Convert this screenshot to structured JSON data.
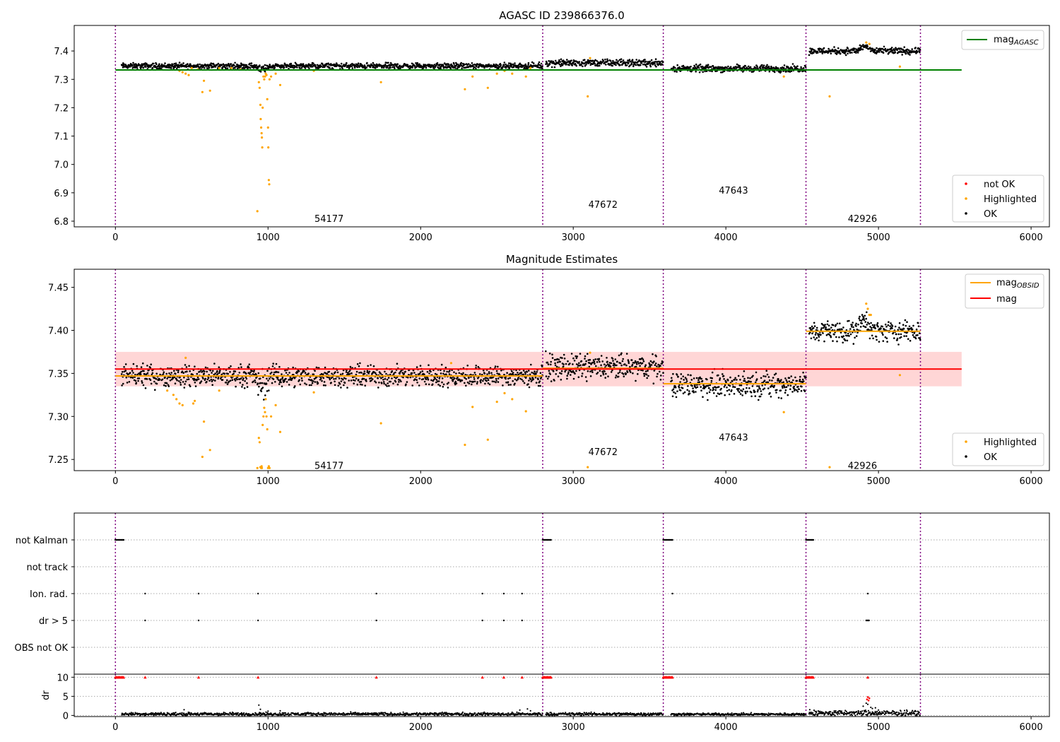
{
  "chart_data": [
    {
      "id": "agasc",
      "type": "scatter",
      "title": "AGASC ID 239866376.0",
      "xlim": [
        -270,
        6120
      ],
      "ylim": [
        6.78,
        7.49
      ],
      "xticks": [
        0,
        1000,
        2000,
        3000,
        4000,
        5000,
        6000
      ],
      "yticks": [
        6.8,
        6.9,
        7.0,
        7.1,
        7.2,
        7.3,
        7.4
      ],
      "ytick_labels": [
        "6.8",
        "6.9",
        "7.0",
        "7.1",
        "7.2",
        "7.3",
        "7.4"
      ],
      "obs_boundaries": [
        0,
        2800,
        3590,
        4525,
        5275
      ],
      "obs_labels": [
        {
          "text": "54177",
          "x": 1400,
          "y": 6.81
        },
        {
          "text": "47672",
          "x": 3195,
          "y": 6.86
        },
        {
          "text": "47643",
          "x": 4050,
          "y": 6.91
        },
        {
          "text": "42926",
          "x": 4895,
          "y": 6.81
        }
      ],
      "hlines": [
        {
          "name": "mag_AGASC",
          "y": 7.333,
          "x0": 0,
          "x1": 5545,
          "color": "#008000"
        }
      ],
      "segments": [
        {
          "x0": 40,
          "x1": 2800,
          "level": 7.347,
          "spread": 0.005
        },
        {
          "x0": 2820,
          "x1": 3590,
          "level": 7.358,
          "spread": 0.006
        },
        {
          "x0": 3640,
          "x1": 4525,
          "level": 7.338,
          "spread": 0.006
        },
        {
          "x0": 4545,
          "x1": 5275,
          "level": 7.4,
          "spread": 0.006
        }
      ],
      "bump": {
        "x0": 4860,
        "x1": 4960,
        "amp": 0.015
      },
      "dip": {
        "x0": 920,
        "x1": 1010,
        "depth": 0.02
      },
      "highlighted": [
        [
          420,
          7.33
        ],
        [
          440,
          7.325
        ],
        [
          460,
          7.32
        ],
        [
          480,
          7.315
        ],
        [
          500,
          7.34
        ],
        [
          540,
          7.335
        ],
        [
          570,
          7.255
        ],
        [
          580,
          7.295
        ],
        [
          620,
          7.26
        ],
        [
          680,
          7.34
        ],
        [
          760,
          7.34
        ],
        [
          820,
          7.335
        ],
        [
          930,
          6.835
        ],
        [
          940,
          7.29
        ],
        [
          945,
          7.27
        ],
        [
          950,
          7.21
        ],
        [
          952,
          7.16
        ],
        [
          955,
          7.13
        ],
        [
          958,
          7.11
        ],
        [
          960,
          7.095
        ],
        [
          962,
          7.06
        ],
        [
          965,
          7.2
        ],
        [
          970,
          7.31
        ],
        [
          975,
          7.3
        ],
        [
          980,
          7.31
        ],
        [
          985,
          7.32
        ],
        [
          990,
          7.315
        ],
        [
          995,
          7.23
        ],
        [
          1000,
          7.13
        ],
        [
          1002,
          7.06
        ],
        [
          1005,
          6.945
        ],
        [
          1008,
          6.93
        ],
        [
          1010,
          7.3
        ],
        [
          1020,
          7.31
        ],
        [
          1050,
          7.32
        ],
        [
          1080,
          7.28
        ],
        [
          1300,
          7.33
        ],
        [
          1740,
          7.29
        ],
        [
          2290,
          7.265
        ],
        [
          2340,
          7.31
        ],
        [
          2440,
          7.27
        ],
        [
          2500,
          7.32
        ],
        [
          2550,
          7.33
        ],
        [
          2600,
          7.32
        ],
        [
          2690,
          7.31
        ],
        [
          2720,
          7.34
        ],
        [
          3095,
          7.24
        ],
        [
          3110,
          7.375
        ],
        [
          4380,
          7.31
        ],
        [
          4680,
          7.24
        ],
        [
          4920,
          7.43
        ],
        [
          4940,
          7.425
        ],
        [
          5140,
          7.345
        ]
      ],
      "legend": [
        {
          "label": "not OK",
          "color": "#ff0000"
        },
        {
          "label": "Highlighted",
          "color": "#ffa500"
        },
        {
          "label": "OK",
          "color": "#000000"
        }
      ]
    },
    {
      "id": "estimates",
      "type": "scatter",
      "title": "Magnitude Estimates",
      "xlim": [
        -270,
        6120
      ],
      "ylim": [
        7.237,
        7.471
      ],
      "xticks": [
        0,
        1000,
        2000,
        3000,
        4000,
        5000,
        6000
      ],
      "yticks": [
        7.25,
        7.3,
        7.35,
        7.4,
        7.45
      ],
      "ytick_labels": [
        "7.25",
        "7.30",
        "7.35",
        "7.40",
        "7.45"
      ],
      "obs_boundaries": [
        0,
        2800,
        3590,
        4525,
        5275
      ],
      "obs_labels": [
        {
          "text": "54177",
          "x": 1400,
          "y": 7.243
        },
        {
          "text": "47672",
          "x": 3195,
          "y": 7.259
        },
        {
          "text": "47643",
          "x": 4050,
          "y": 7.276
        },
        {
          "text": "42926",
          "x": 4895,
          "y": 7.243
        }
      ],
      "band": {
        "y0": 7.335,
        "y1": 7.375,
        "x0": 0,
        "x1": 5545,
        "color": "#ffd6d6"
      },
      "mag_line": {
        "name": "mag",
        "y": 7.355,
        "x0": 0,
        "x1": 5545,
        "color": "#ff0000"
      },
      "obs_mags": [
        {
          "x0": 0,
          "x1": 2800,
          "y": 7.347
        },
        {
          "x0": 2800,
          "x1": 3590,
          "y": 7.356
        },
        {
          "x0": 3590,
          "x1": 4525,
          "y": 7.338
        },
        {
          "x0": 4525,
          "x1": 5275,
          "y": 7.399
        }
      ],
      "segments": [
        {
          "x0": 40,
          "x1": 2800,
          "level": 7.347,
          "spread": 0.006
        },
        {
          "x0": 2820,
          "x1": 3590,
          "level": 7.357,
          "spread": 0.007
        },
        {
          "x0": 3640,
          "x1": 4525,
          "level": 7.337,
          "spread": 0.007
        },
        {
          "x0": 4545,
          "x1": 5275,
          "level": 7.399,
          "spread": 0.006
        }
      ],
      "bump": {
        "x0": 4860,
        "x1": 4960,
        "amp": 0.012
      },
      "dip": {
        "x0": 920,
        "x1": 1010,
        "depth": 0.025
      },
      "highlighted": [
        [
          340,
          7.33
        ],
        [
          380,
          7.325
        ],
        [
          400,
          7.32
        ],
        [
          420,
          7.315
        ],
        [
          440,
          7.313
        ],
        [
          460,
          7.368
        ],
        [
          510,
          7.315
        ],
        [
          520,
          7.318
        ],
        [
          570,
          7.253
        ],
        [
          580,
          7.294
        ],
        [
          620,
          7.261
        ],
        [
          680,
          7.33
        ],
        [
          930,
          7.24
        ],
        [
          940,
          7.275
        ],
        [
          945,
          7.27
        ],
        [
          950,
          7.241
        ],
        [
          955,
          7.24
        ],
        [
          958,
          7.242
        ],
        [
          960,
          7.24
        ],
        [
          965,
          7.29
        ],
        [
          970,
          7.3
        ],
        [
          975,
          7.31
        ],
        [
          980,
          7.305
        ],
        [
          985,
          7.32
        ],
        [
          990,
          7.3
        ],
        [
          995,
          7.285
        ],
        [
          1000,
          7.24
        ],
        [
          1005,
          7.242
        ],
        [
          1010,
          7.24
        ],
        [
          1020,
          7.3
        ],
        [
          1050,
          7.313
        ],
        [
          1080,
          7.282
        ],
        [
          1300,
          7.328
        ],
        [
          1740,
          7.292
        ],
        [
          2200,
          7.362
        ],
        [
          2290,
          7.267
        ],
        [
          2340,
          7.311
        ],
        [
          2440,
          7.273
        ],
        [
          2500,
          7.317
        ],
        [
          2550,
          7.327
        ],
        [
          2600,
          7.32
        ],
        [
          2690,
          7.306
        ],
        [
          3095,
          7.241
        ],
        [
          3110,
          7.374
        ],
        [
          4380,
          7.305
        ],
        [
          4680,
          7.241
        ],
        [
          4920,
          7.431
        ],
        [
          4930,
          7.425
        ],
        [
          4940,
          7.418
        ],
        [
          4950,
          7.418
        ],
        [
          5140,
          7.348
        ]
      ],
      "legend": [
        {
          "label": "Highlighted",
          "color": "#ffa500"
        },
        {
          "label": "OK",
          "color": "#000000"
        }
      ],
      "line_legend": [
        {
          "label": "mag_OBSID",
          "color": "#ffa500"
        },
        {
          "label": "mag",
          "color": "#ff0000"
        }
      ]
    },
    {
      "id": "flags",
      "type": "scatter",
      "xlim": [
        -270,
        6120
      ],
      "xticks": [
        0,
        1000,
        2000,
        3000,
        4000,
        5000,
        6000
      ],
      "obs_boundaries": [
        0,
        2800,
        3590,
        4525,
        5275
      ],
      "flag_rows": [
        "not Kalman",
        "not track",
        "Ion. rad.",
        "dr > 5",
        "OBS not OK"
      ],
      "flag_events": {
        "not Kalman": [
          [
            0,
            55
          ],
          [
            2800,
            2855
          ],
          [
            3590,
            3655
          ],
          [
            4525,
            4575
          ]
        ],
        "not track": [],
        "Ion. rad.": [
          [
            195,
            195
          ],
          [
            545,
            545
          ],
          [
            935,
            935
          ],
          [
            1710,
            1710
          ],
          [
            2405,
            2405
          ],
          [
            2545,
            2545
          ],
          [
            2665,
            2665
          ],
          [
            3650,
            3650
          ],
          [
            4930,
            4930
          ]
        ],
        "dr > 5": [
          [
            195,
            195
          ],
          [
            545,
            545
          ],
          [
            935,
            935
          ],
          [
            1710,
            1710
          ],
          [
            2405,
            2405
          ],
          [
            2545,
            2545
          ],
          [
            2665,
            2665
          ],
          [
            4920,
            4940
          ]
        ],
        "OBS not OK": []
      },
      "dr_ylabel": "dr",
      "dr_ylim": [
        -0.3,
        10.8
      ],
      "dr_yticks": [
        0,
        5,
        10
      ],
      "dr_ytick_labels": [
        "0",
        "5",
        "10"
      ],
      "dr_clip_points": [
        [
          0,
          55
        ],
        [
          195,
          195
        ],
        [
          545,
          545
        ],
        [
          935,
          935
        ],
        [
          1710,
          1710
        ],
        [
          2405,
          2405
        ],
        [
          2545,
          2545
        ],
        [
          2665,
          2665
        ],
        [
          2800,
          2855
        ],
        [
          3590,
          3655
        ],
        [
          4525,
          4575
        ],
        [
          4930,
          4930
        ]
      ],
      "dr_segments": [
        {
          "x0": 40,
          "x1": 2800,
          "level": 0.35,
          "spread": 0.2
        },
        {
          "x0": 2820,
          "x1": 3590,
          "level": 0.35,
          "spread": 0.2
        },
        {
          "x0": 3640,
          "x1": 4525,
          "level": 0.3,
          "spread": 0.15
        },
        {
          "x0": 4545,
          "x1": 5275,
          "level": 0.6,
          "spread": 0.35
        }
      ],
      "dr_extra": [
        [
          450,
          1.5
        ],
        [
          940,
          2.7
        ],
        [
          950,
          1.6
        ],
        [
          1000,
          1.1
        ],
        [
          1080,
          1.2
        ],
        [
          2650,
          1.4
        ],
        [
          2700,
          1.7
        ],
        [
          2720,
          1.2
        ],
        [
          4550,
          1.5
        ],
        [
          4900,
          2.4
        ],
        [
          4920,
          3.2
        ],
        [
          4930,
          2.9
        ],
        [
          4950,
          2.1
        ],
        [
          4960,
          1.8
        ],
        [
          4980,
          2.0
        ],
        [
          5000,
          1.4
        ]
      ],
      "dr_red": [
        [
          4925,
          4.2
        ],
        [
          4930,
          4.8
        ],
        [
          4935,
          3.9
        ],
        [
          4940,
          4.5
        ]
      ]
    }
  ]
}
